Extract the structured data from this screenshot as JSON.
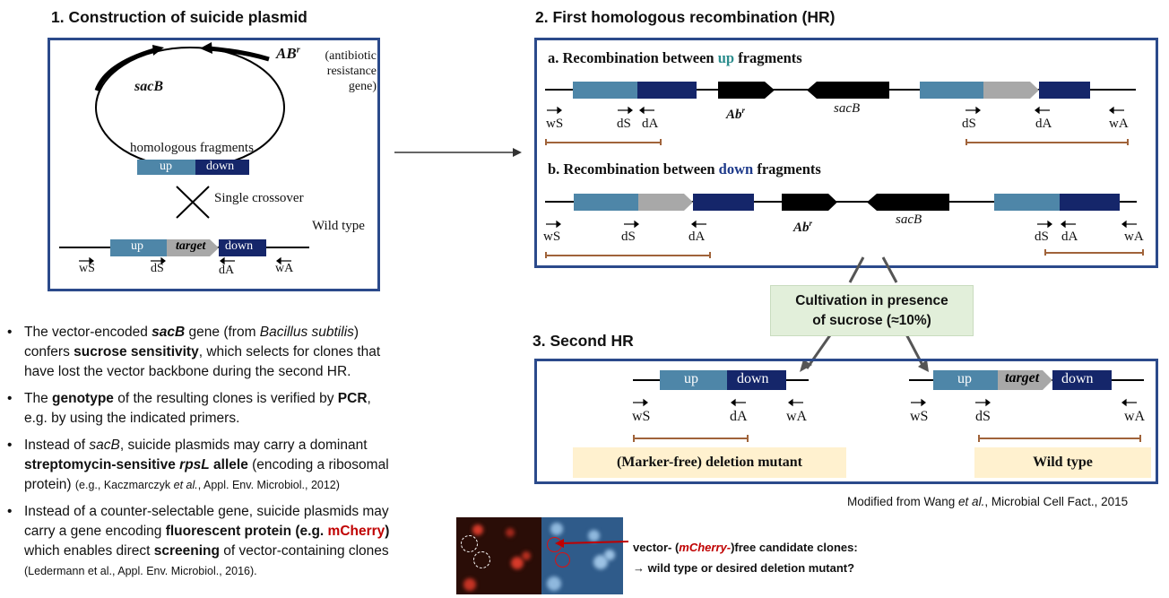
{
  "section1": {
    "title": "1. Construction of suicide plasmid",
    "sacB": "sacB",
    "abr": "AB",
    "abr_sup": "r",
    "abr_desc_1": "(antibiotic",
    "abr_desc_2": "resistance",
    "abr_desc_3": "gene)",
    "homologous": "homologous fragments",
    "up": "up",
    "down": "down",
    "single_crossover": "Single crossover",
    "wild_type": "Wild type",
    "target": "target",
    "primers": [
      "wS",
      "dS",
      "dA",
      "wA"
    ]
  },
  "section2": {
    "title": "2. First homologous recombination (HR)",
    "a_prefix": "a. Recombination between ",
    "a_key": "up",
    "b_prefix": "b. Recombination between ",
    "b_key": "down",
    "suffix": " fragments",
    "abr": "Ab",
    "abr_sup": "r",
    "sacB": "sacB",
    "primers": [
      "wS",
      "dS",
      "dA",
      "wA"
    ]
  },
  "cultivation": {
    "line1": "Cultivation in presence",
    "line2": "of sucrose (≈10%)"
  },
  "section3": {
    "title": "3. Second HR",
    "up": "up",
    "down": "down",
    "target": "target",
    "deletion_label": "(Marker-free) deletion mutant",
    "wildtype_label": "Wild type",
    "primers": [
      "wS",
      "dS",
      "dA",
      "wA"
    ]
  },
  "credit": {
    "prefix": "Modified from Wang ",
    "etal": "et al.",
    "suffix": ", Microbial Cell Fact., 2015"
  },
  "bullets": {
    "b1": {
      "t1": "The vector-encoded ",
      "sacB": "sacB",
      "t2": " gene (from ",
      "bs": "Bacillus subtilis",
      "t3": ")",
      "t4": "confers ",
      "sens": "sucrose sensitivity",
      "t5": ", which selects for clones that",
      "t6": "have lost the vector backbone during the second HR."
    },
    "b2": {
      "t1": "The ",
      "geno": "genotype",
      "t2": " of the resulting clones is verified by ",
      "pcr": "PCR",
      "t3": ",",
      "t4": "e.g. by using the indicated primers."
    },
    "b3": {
      "t1": "Instead of ",
      "sacB": "sacB",
      "t2": ", suicide plasmids may carry a dominant",
      "strep": "streptomycin-sensitive ",
      "rpsl": "rpsL",
      "allele": " allele",
      "t3": " (encoding a ribosomal",
      "t4": "protein) ",
      "ref1": "(e.g., Kaczmarczyk ",
      "etal": "et al.",
      "ref2": ", Appl. Env. Microbiol., 2012)"
    },
    "b4": {
      "t1": "Instead of a counter-selectable gene, suicide plasmids may",
      "t2": "carry a  gene encoding ",
      "fp": "fluorescent protein (e.g. ",
      "mch": "mCherry",
      "close": ")",
      "t3": "which enables direct ",
      "scr": "screening",
      "t4": " of vector-containing clones",
      "ref": "(Ledermann et al., Appl. Env. Microbiol., 2016)."
    }
  },
  "micro": {
    "line1_prefix": "vector- (",
    "mcherry": "mCherry-",
    "line1_suffix": ")free candidate clones:",
    "line2": "→ wild type or desired deletion mutant?"
  },
  "colors": {
    "panel_border": "#2b4a8b",
    "up": "#4e86a8",
    "down": "#15266a",
    "target": "#a8a8a8",
    "teal_text": "#2a8c8c",
    "navy_text": "#1e3a8a",
    "bracket": "#a0633a",
    "green_box": "#e2efda",
    "label_bg": "#fff1cf",
    "red": "#c00000"
  }
}
